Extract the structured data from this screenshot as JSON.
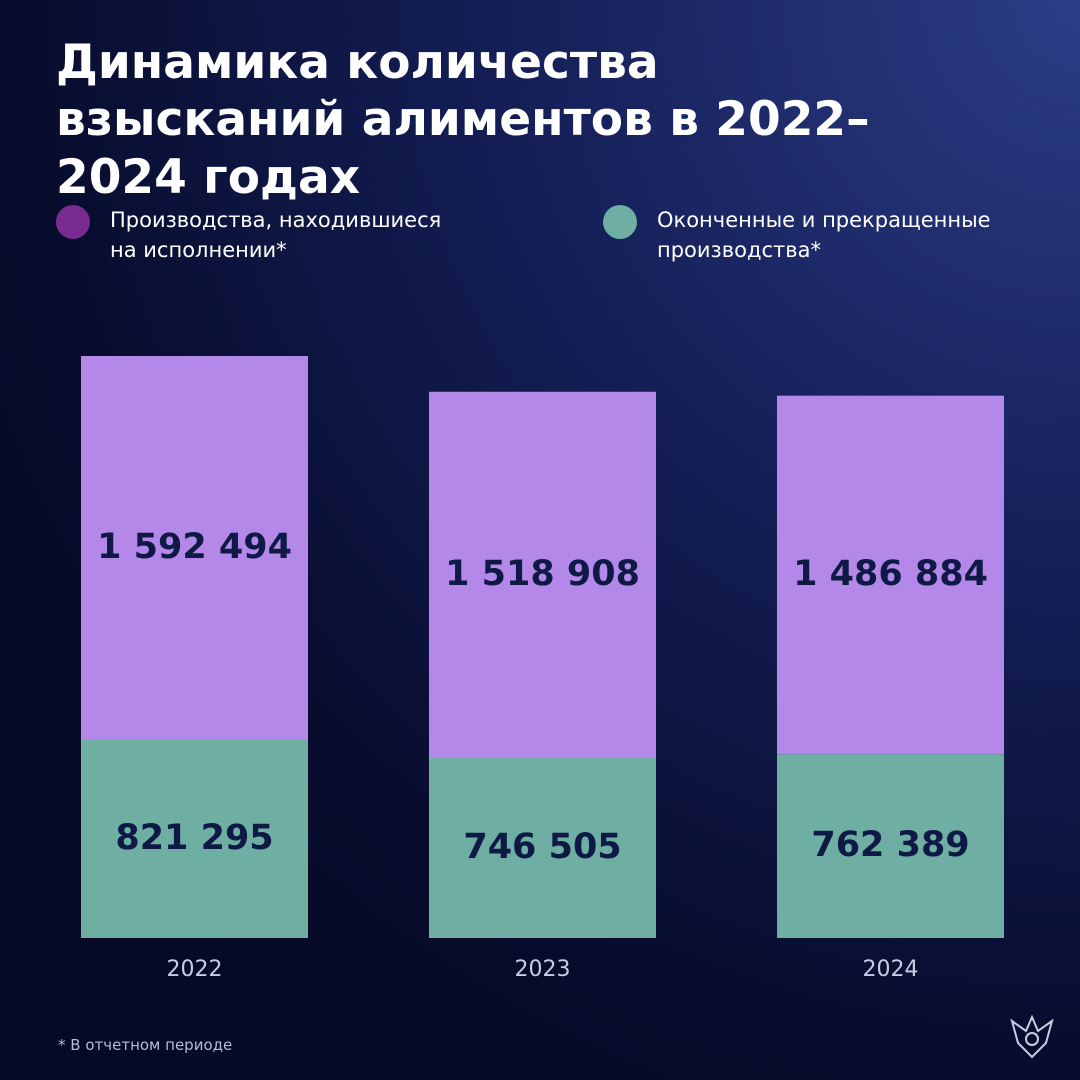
{
  "chart_data": {
    "type": "stacked_bar",
    "title": "Динамика количества взысканий алиментов в 2022–2024 годах",
    "categories": [
      "2022",
      "2023",
      "2024"
    ],
    "series": [
      {
        "name": "Производства, находившиеся на исполнении*",
        "color": "#b388e8",
        "legend_color": "#7a2b8f",
        "values": [
          1592494,
          1518908,
          1486884
        ],
        "value_labels": [
          "1 592 494",
          "1 518 908",
          "1 486 884"
        ]
      },
      {
        "name": "Оконченные и прекращенные производства*",
        "color": "#6eaea3",
        "legend_color": "#6eaea3",
        "values": [
          821295,
          746505,
          762389
        ],
        "value_labels": [
          "821 295",
          "746 505",
          "762 389"
        ]
      }
    ],
    "footnote": "* В отчетном периоде"
  }
}
